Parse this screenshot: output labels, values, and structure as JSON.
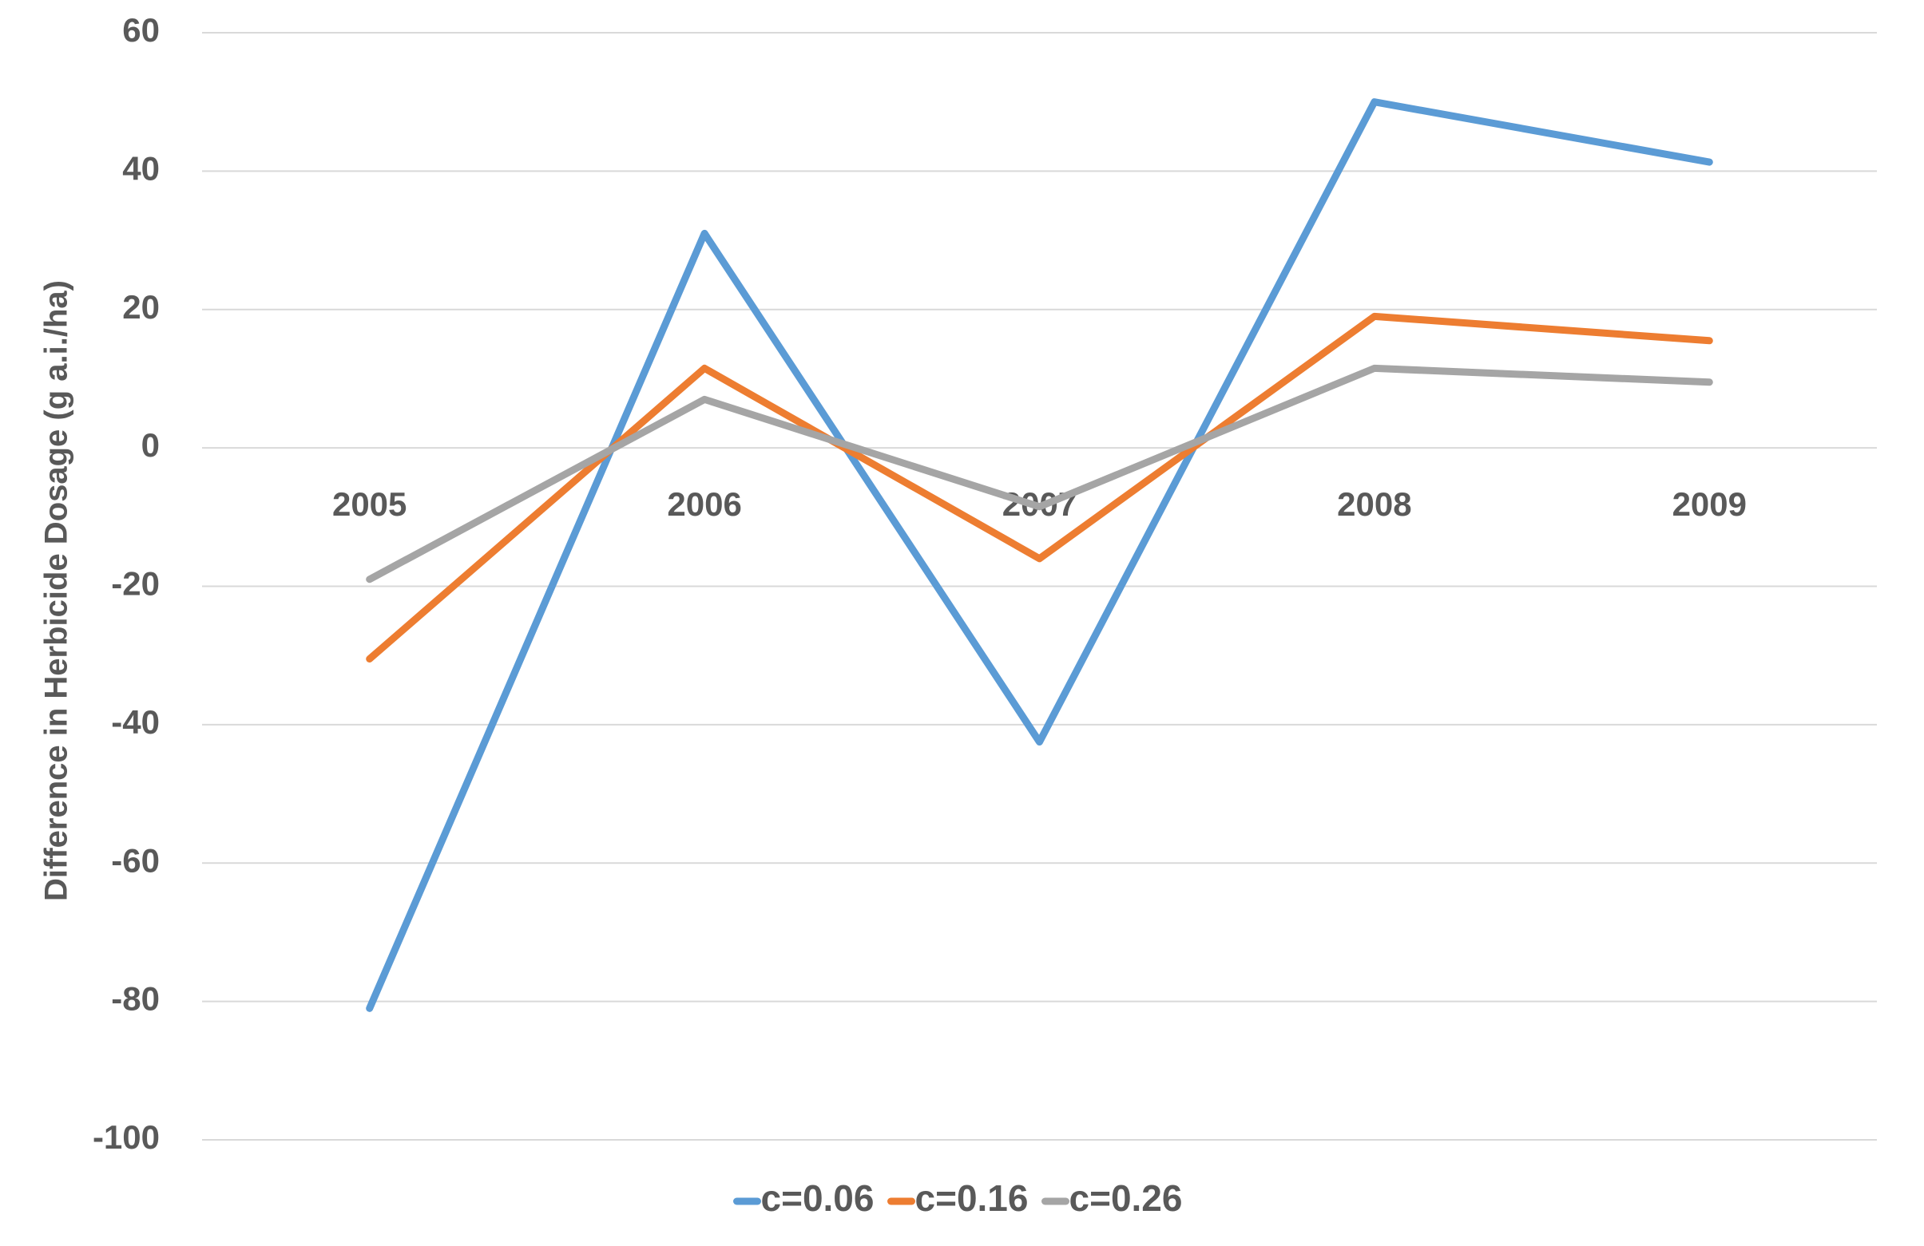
{
  "chart_data": {
    "type": "line",
    "title": "",
    "xlabel": "",
    "ylabel": "Difference in Herbicide Dosage (g a.i./ha)",
    "categories": [
      "2005",
      "2006",
      "2007",
      "2008",
      "2009"
    ],
    "ylim": [
      -100,
      60
    ],
    "yticks": [
      60,
      40,
      20,
      0,
      -20,
      -40,
      -60,
      -80,
      -100
    ],
    "grid": true,
    "legend_position": "bottom",
    "series": [
      {
        "name": "c=0.06",
        "color": "#5B9BD5",
        "values": [
          -81,
          31,
          -42.5,
          50,
          41.3
        ]
      },
      {
        "name": "c=0.16",
        "color": "#ED7D31",
        "values": [
          -30.5,
          11.5,
          -16,
          19,
          15.5
        ]
      },
      {
        "name": "c=0.26",
        "color": "#A5A5A5",
        "values": [
          -19,
          7,
          -8.5,
          11.5,
          9.5
        ]
      }
    ]
  }
}
